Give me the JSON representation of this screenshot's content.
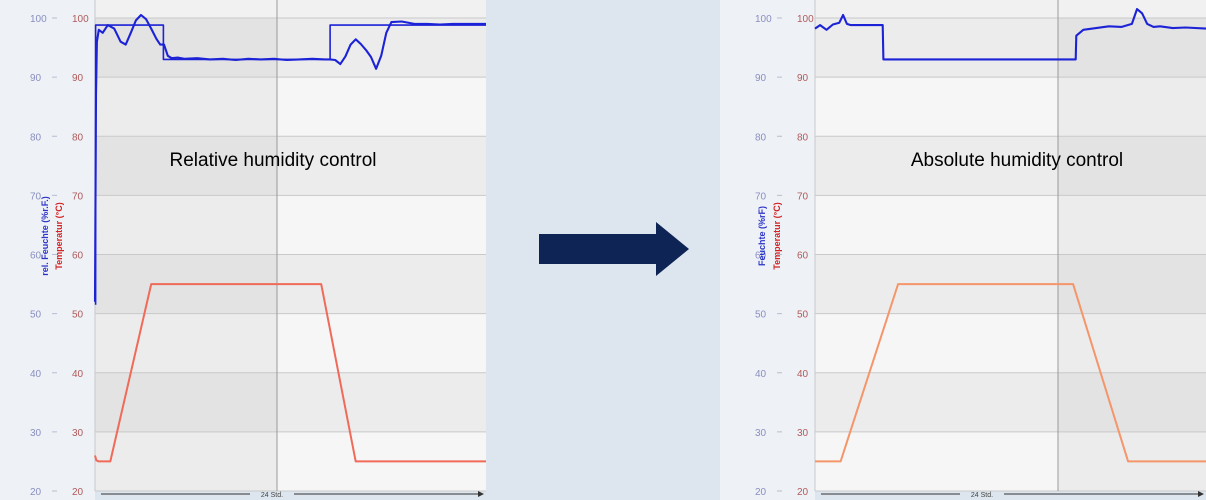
{
  "colors": {
    "humidity": "#1c22d6",
    "temperature": "#f06a5a",
    "temperature_right": "#f5956a",
    "arrow": "#0d2454",
    "axis_left_label": "#2b33c8",
    "axis_right_label": "#d32222",
    "tick_text": "#8a8fc0",
    "tick_text_red": "#b05a5a",
    "page_bg": "#dde6ee"
  },
  "arrow": {
    "icon": "right-arrow-icon"
  },
  "chart_data": [
    {
      "type": "line",
      "title": "Relative humidity control",
      "xlabel": "24 Std.",
      "ylabel_left": "rel. Feuchte (%r.F.)",
      "ylabel_right": "Temperatur (°C)",
      "ylim": [
        20,
        100
      ],
      "yticks_left": [
        "100",
        "90",
        "80",
        "70",
        "60",
        "50",
        "40",
        "30",
        "20"
      ],
      "yticks_right": [
        "100",
        "90",
        "80",
        "70",
        "60",
        "50",
        "40",
        "30",
        "20"
      ],
      "x_range_hours": [
        0,
        30.6
      ],
      "grid": true,
      "series": [
        {
          "kind": "humidity-setpoint",
          "x": [
            0.05,
            0.05,
            5.35,
            5.35,
            18.4,
            18.4,
            30.6
          ],
          "y": [
            51.5,
            98.8,
            98.8,
            93.0,
            93.0,
            98.8,
            98.8
          ]
        },
        {
          "kind": "humidity-actual",
          "x": [
            0.0,
            0.08,
            0.15,
            0.3,
            0.6,
            1.0,
            1.5,
            2.0,
            2.4,
            2.8,
            3.2,
            3.6,
            4.0,
            4.4,
            4.8,
            5.1,
            5.4,
            5.7,
            6.0,
            6.5,
            7.0,
            8.0,
            9.0,
            10.0,
            11.0,
            12.0,
            13.0,
            14.0,
            15.0,
            16.0,
            17.0,
            18.0,
            18.4,
            18.8,
            19.2,
            19.6,
            20.0,
            20.4,
            20.8,
            21.2,
            21.6,
            22.0,
            22.4,
            22.8,
            23.2,
            24.0,
            25.0,
            26.0,
            27.0,
            28.0,
            29.0,
            30.6
          ],
          "y": [
            52,
            87,
            96,
            98,
            97.5,
            98.8,
            98.2,
            96,
            95.5,
            97.5,
            99.6,
            100.5,
            99.8,
            98.2,
            96.5,
            95.5,
            95.5,
            93.6,
            93.2,
            93.3,
            93.1,
            93.2,
            93.0,
            93.1,
            92.9,
            93.1,
            93.0,
            93.1,
            92.9,
            93.0,
            93.1,
            93.0,
            93.0,
            92.9,
            92.2,
            93.5,
            95.5,
            96.4,
            95.6,
            94.6,
            93.4,
            91.4,
            93.6,
            97.5,
            99.3,
            99.4,
            99.0,
            99.0,
            98.9,
            99.0,
            99.0,
            99.0
          ]
        },
        {
          "kind": "temperature",
          "x": [
            0.0,
            0.1,
            0.3,
            1.2,
            4.4,
            15.0,
            17.1,
            17.7,
            20.4,
            23.0,
            30.6
          ],
          "y": [
            26,
            25.2,
            25,
            25,
            55,
            55,
            55,
            55,
            25,
            25,
            25
          ]
        }
      ]
    },
    {
      "type": "line",
      "title": "Absolute humidity control",
      "xlabel": "24 Std.",
      "ylabel_left": "Feuchte (%rF)",
      "ylabel_right": "Temperatur (°C)",
      "ylim": [
        20,
        100
      ],
      "yticks_left": [
        "100",
        "90",
        "80",
        "70",
        "60",
        "50",
        "40",
        "30",
        "20"
      ],
      "yticks_right": [
        "100",
        "90",
        "80",
        "70",
        "60",
        "50",
        "40",
        "30",
        "20"
      ],
      "x_range_hours": [
        0,
        30.6
      ],
      "grid": true,
      "series": [
        {
          "kind": "humidity-actual",
          "x": [
            0.0,
            0.4,
            0.9,
            1.4,
            1.9,
            2.2,
            2.5,
            2.8,
            3.5,
            4.5,
            5.3,
            5.35,
            8.0,
            12.0,
            16.0,
            20.4,
            20.45,
            21.0,
            22.0,
            23.0,
            24.0,
            24.8,
            25.2,
            25.6,
            26.0,
            26.5,
            27.0,
            28.0,
            29.0,
            30.6
          ],
          "y": [
            98.2,
            98.8,
            98.0,
            98.9,
            99.2,
            100.5,
            99.0,
            98.8,
            98.8,
            98.8,
            98.8,
            93.0,
            93.0,
            93.0,
            93.0,
            93.0,
            97.0,
            98.0,
            98.3,
            98.6,
            98.5,
            99.0,
            101.5,
            100.8,
            99.0,
            98.5,
            98.6,
            98.3,
            98.4,
            98.2
          ]
        },
        {
          "kind": "temperature",
          "x": [
            0.0,
            2.0,
            6.5,
            15.0,
            19.6,
            20.2,
            24.5,
            25.2,
            26.0,
            30.6
          ],
          "y": [
            25,
            25,
            55,
            55,
            55,
            55,
            25,
            25,
            25,
            25
          ]
        }
      ]
    }
  ]
}
